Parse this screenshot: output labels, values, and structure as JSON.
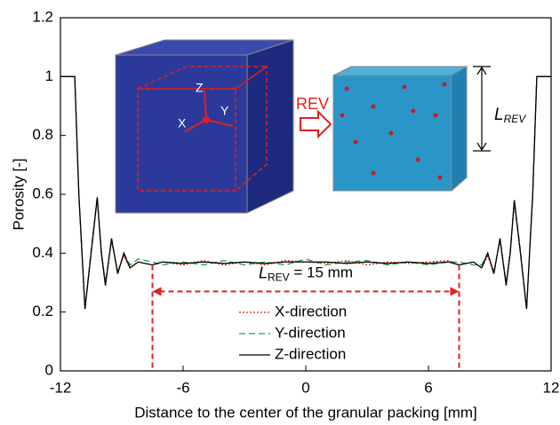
{
  "chart_data": {
    "type": "line",
    "x_label": "Distance to the center of the granular packing [mm]",
    "y_label": "Porosity [-]",
    "xlim": [
      -12,
      12
    ],
    "xticks": [
      -12,
      -6,
      0,
      6,
      12
    ],
    "ylim": [
      0,
      1.2
    ],
    "yticks": [
      0,
      0.2,
      0.4,
      0.6,
      0.8,
      1,
      1.2
    ],
    "legend": "bottom-center",
    "x": [
      -12,
      -11.3,
      -11.1,
      -10.8,
      -10.5,
      -10.2,
      -10.0,
      -9.8,
      -9.5,
      -9.2,
      -8.9,
      -8.6,
      -8.2,
      -7.5,
      -7,
      -6,
      -5,
      -4,
      -3,
      -2,
      -1,
      0,
      1,
      2,
      3,
      4,
      5,
      6,
      7,
      7.5,
      8.2,
      8.6,
      8.9,
      9.2,
      9.5,
      9.8,
      10.0,
      10.2,
      10.5,
      10.8,
      11.1,
      11.3,
      12
    ],
    "series": [
      {
        "name": "X-direction",
        "color": "#e02020",
        "style": "dotted",
        "values": [
          1,
          1,
          0.6,
          0.21,
          0.4,
          0.58,
          0.41,
          0.3,
          0.44,
          0.34,
          0.39,
          0.35,
          0.37,
          0.36,
          0.37,
          0.36,
          0.375,
          0.36,
          0.37,
          0.36,
          0.375,
          0.37,
          0.365,
          0.375,
          0.36,
          0.37,
          0.365,
          0.37,
          0.375,
          0.36,
          0.37,
          0.35,
          0.39,
          0.34,
          0.44,
          0.3,
          0.41,
          0.57,
          0.4,
          0.21,
          0.6,
          1,
          1
        ]
      },
      {
        "name": "Y-direction",
        "color": "#20a050",
        "style": "dashed",
        "values": [
          1,
          1,
          0.6,
          0.21,
          0.41,
          0.59,
          0.4,
          0.3,
          0.45,
          0.33,
          0.4,
          0.36,
          0.38,
          0.37,
          0.36,
          0.37,
          0.36,
          0.375,
          0.36,
          0.37,
          0.36,
          0.38,
          0.36,
          0.37,
          0.375,
          0.36,
          0.37,
          0.36,
          0.37,
          0.37,
          0.36,
          0.36,
          0.4,
          0.33,
          0.45,
          0.3,
          0.4,
          0.58,
          0.41,
          0.21,
          0.6,
          1,
          1
        ]
      },
      {
        "name": "Z-direction",
        "color": "#000000",
        "style": "solid",
        "values": [
          1,
          1,
          0.6,
          0.21,
          0.4,
          0.59,
          0.4,
          0.29,
          0.45,
          0.33,
          0.4,
          0.35,
          0.37,
          0.36,
          0.37,
          0.365,
          0.37,
          0.365,
          0.37,
          0.365,
          0.37,
          0.37,
          0.37,
          0.365,
          0.37,
          0.365,
          0.37,
          0.365,
          0.37,
          0.36,
          0.37,
          0.35,
          0.4,
          0.33,
          0.45,
          0.29,
          0.4,
          0.58,
          0.4,
          0.21,
          0.6,
          1,
          1
        ]
      }
    ],
    "annotation": {
      "main": "L",
      "sub": "REV",
      "rest": " = 15 mm",
      "color": "#e02020",
      "x_range": [
        -7.5,
        7.5
      ],
      "y": 0.27
    },
    "inset": {
      "arrow_label": "REV",
      "axis_x": "X",
      "axis_y": "Y",
      "axis_z": "Z",
      "size_main": "L",
      "size_sub": "REV"
    }
  }
}
